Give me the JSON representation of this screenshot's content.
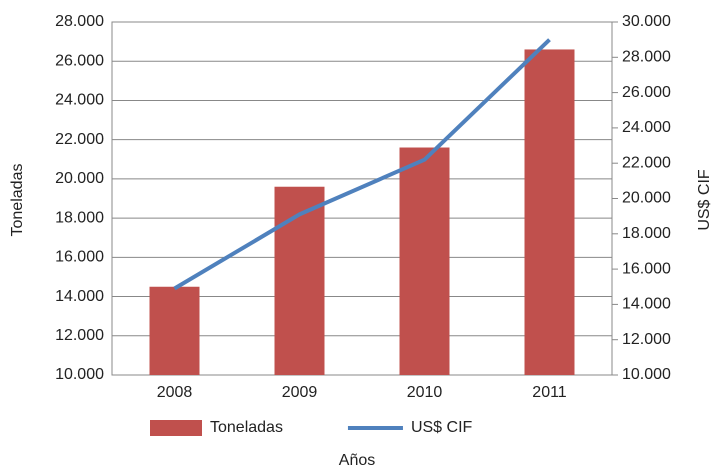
{
  "chart_data": {
    "type": "bar",
    "x_label": "Años",
    "y_label": "Toneladas",
    "y2_label": "US$ CIF",
    "categories": [
      "2008",
      "2009",
      "2010",
      "2011"
    ],
    "series": [
      {
        "name": "Toneladas",
        "type": "bar",
        "color": "#c0504d",
        "values": [
          14500,
          19600,
          21600,
          26600
        ]
      },
      {
        "name": "US$ CIF",
        "type": "line",
        "axis": "y2",
        "color": "#4f81bd",
        "values": [
          14900,
          19100,
          22200,
          29000
        ]
      }
    ],
    "ylim": [
      10000,
      28000
    ],
    "yticks": [
      {
        "value": 10000,
        "label": "10.000"
      },
      {
        "value": 12000,
        "label": "12.000"
      },
      {
        "value": 14000,
        "label": "14.000"
      },
      {
        "value": 16000,
        "label": "16.000"
      },
      {
        "value": 18000,
        "label": "18.000"
      },
      {
        "value": 20000,
        "label": "20.000"
      },
      {
        "value": 22000,
        "label": "22.000"
      },
      {
        "value": 24000,
        "label": "24.000"
      },
      {
        "value": 26000,
        "label": "26.000"
      },
      {
        "value": 28000,
        "label": "28.000"
      }
    ],
    "y2lim": [
      10000,
      30000
    ],
    "y2ticks": [
      {
        "value": 10000,
        "label": "10.000"
      },
      {
        "value": 12000,
        "label": "12.000"
      },
      {
        "value": 14000,
        "label": "14.000"
      },
      {
        "value": 16000,
        "label": "16.000"
      },
      {
        "value": 18000,
        "label": "18.000"
      },
      {
        "value": 20000,
        "label": "20.000"
      },
      {
        "value": 22000,
        "label": "22.000"
      },
      {
        "value": 24000,
        "label": "24.000"
      },
      {
        "value": 26000,
        "label": "26.000"
      },
      {
        "value": 28000,
        "label": "28.000"
      },
      {
        "value": 30000,
        "label": "30.000"
      }
    ],
    "grid": true,
    "legend": "bottom"
  }
}
